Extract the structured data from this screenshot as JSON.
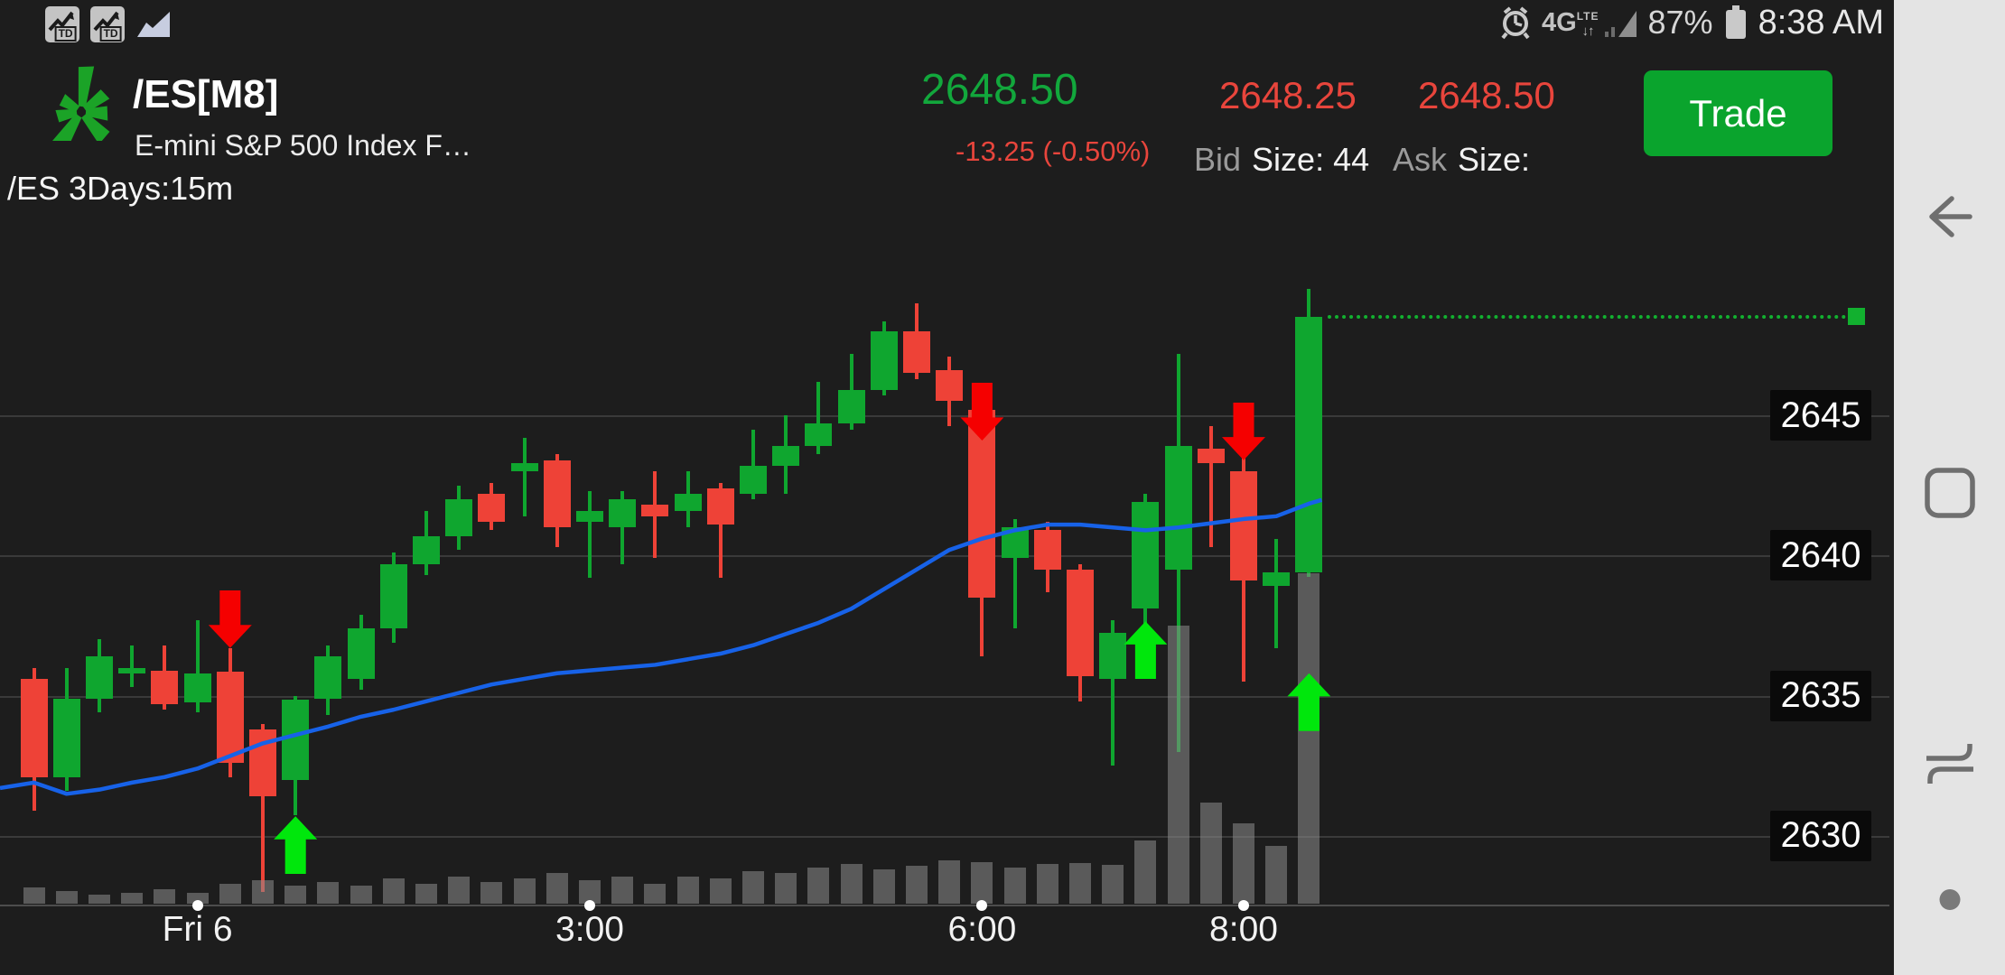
{
  "status_bar": {
    "left_icons": [
      "td-chart-notification-icon",
      "td-chart-notification-icon",
      "area-chart-notification-icon"
    ],
    "network": "4G",
    "network_sub": "LTE",
    "battery_pct": "87%",
    "time": "8:38 AM"
  },
  "header": {
    "symbol": "/ES[M8]",
    "description": "E-mini S&P 500 Index F…",
    "last": "2648.50",
    "change": "-13.25 (-0.50%)",
    "bid": "2648.25",
    "bid_label": "Bid",
    "bid_size_label": "Size:",
    "bid_size": "44",
    "ask": "2648.50",
    "ask_label": "Ask",
    "ask_size_label": "Size:",
    "ask_size": "",
    "trade_label": "Trade"
  },
  "chart_label": "/ES 3Days:15m",
  "colors": {
    "background": "#1d1d1d",
    "candle_up": "#0fa62f",
    "candle_down": "#ee4237",
    "arrow_up": "#00e70c",
    "arrow_down": "#f50000",
    "sma": "#1762e8",
    "price_up_text": "#12a73c",
    "price_down_text": "#e8453c",
    "trade_button": "#0aa42d",
    "last_price_line": "#12b02f",
    "volume": "#8c8c8c",
    "navbar_bg": "#e4e4e4",
    "navbar_icon": "#6f6f6f"
  },
  "chart_data": {
    "type": "candlestick",
    "symbol": "/ES",
    "timeframe": "3Days:15m",
    "ylabel": "price",
    "y_ticks": [
      2645,
      2640,
      2635,
      2630
    ],
    "ylim": [
      2627,
      2652
    ],
    "x_ticks": [
      {
        "label": "Fri 6",
        "candle": 5
      },
      {
        "label": "3:00",
        "candle": 17
      },
      {
        "label": "6:00",
        "candle": 29
      },
      {
        "label": "8:00",
        "candle": 37
      }
    ],
    "last_price": 2648.5,
    "legend_position": "none",
    "grid": true,
    "candles": [
      {
        "t": "22:45",
        "o": 2635.6,
        "h": 2636.0,
        "l": 2630.9,
        "c": 2632.1,
        "v": 18
      },
      {
        "t": "23:00",
        "o": 2632.1,
        "h": 2636.0,
        "l": 2631.6,
        "c": 2634.9,
        "v": 14
      },
      {
        "t": "23:15",
        "o": 2634.9,
        "h": 2637.0,
        "l": 2634.4,
        "c": 2636.4,
        "v": 10
      },
      {
        "t": "23:30",
        "o": 2635.8,
        "h": 2636.8,
        "l": 2635.3,
        "c": 2636.0,
        "v": 12
      },
      {
        "t": "23:45",
        "o": 2635.9,
        "h": 2636.8,
        "l": 2634.5,
        "c": 2634.7,
        "v": 16
      },
      {
        "t": "0:00",
        "o": 2634.75,
        "h": 2637.7,
        "l": 2634.4,
        "c": 2635.8,
        "v": 12
      },
      {
        "t": "0:15",
        "o": 2635.85,
        "h": 2636.7,
        "l": 2632.1,
        "c": 2632.6,
        "v": 22
      },
      {
        "t": "0:30",
        "o": 2633.8,
        "h": 2634.0,
        "l": 2628.0,
        "c": 2631.4,
        "v": 26
      },
      {
        "t": "0:45",
        "o": 2632.0,
        "h": 2635.0,
        "l": 2630.75,
        "c": 2634.85,
        "v": 20
      },
      {
        "t": "1:00",
        "o": 2634.9,
        "h": 2636.8,
        "l": 2634.3,
        "c": 2636.4,
        "v": 24
      },
      {
        "t": "1:15",
        "o": 2635.6,
        "h": 2637.9,
        "l": 2635.2,
        "c": 2637.4,
        "v": 20
      },
      {
        "t": "1:30",
        "o": 2637.4,
        "h": 2640.1,
        "l": 2636.9,
        "c": 2639.7,
        "v": 28
      },
      {
        "t": "1:45",
        "o": 2639.7,
        "h": 2641.6,
        "l": 2639.3,
        "c": 2640.7,
        "v": 22
      },
      {
        "t": "2:00",
        "o": 2640.7,
        "h": 2642.5,
        "l": 2640.2,
        "c": 2642.0,
        "v": 30
      },
      {
        "t": "2:15",
        "o": 2642.2,
        "h": 2642.6,
        "l": 2640.9,
        "c": 2641.2,
        "v": 24
      },
      {
        "t": "2:30",
        "o": 2643.0,
        "h": 2644.2,
        "l": 2641.4,
        "c": 2643.3,
        "v": 28
      },
      {
        "t": "2:45",
        "o": 2643.4,
        "h": 2643.6,
        "l": 2640.3,
        "c": 2641.0,
        "v": 34
      },
      {
        "t": "3:00",
        "o": 2641.2,
        "h": 2642.3,
        "l": 2639.2,
        "c": 2641.6,
        "v": 26
      },
      {
        "t": "3:15",
        "o": 2641.0,
        "h": 2642.3,
        "l": 2639.7,
        "c": 2642.0,
        "v": 30
      },
      {
        "t": "3:30",
        "o": 2641.8,
        "h": 2643.0,
        "l": 2639.9,
        "c": 2641.4,
        "v": 22
      },
      {
        "t": "3:45",
        "o": 2641.6,
        "h": 2643.0,
        "l": 2641.0,
        "c": 2642.2,
        "v": 30
      },
      {
        "t": "4:00",
        "o": 2642.4,
        "h": 2642.6,
        "l": 2639.2,
        "c": 2641.1,
        "v": 28
      },
      {
        "t": "4:15",
        "o": 2642.2,
        "h": 2644.5,
        "l": 2642.0,
        "c": 2643.2,
        "v": 36
      },
      {
        "t": "4:30",
        "o": 2643.2,
        "h": 2645.0,
        "l": 2642.2,
        "c": 2643.9,
        "v": 34
      },
      {
        "t": "4:45",
        "o": 2643.9,
        "h": 2646.2,
        "l": 2643.6,
        "c": 2644.7,
        "v": 40
      },
      {
        "t": "5:00",
        "o": 2644.7,
        "h": 2647.2,
        "l": 2644.5,
        "c": 2645.9,
        "v": 44
      },
      {
        "t": "5:15",
        "o": 2645.9,
        "h": 2648.35,
        "l": 2645.7,
        "c": 2648.0,
        "v": 38
      },
      {
        "t": "5:30",
        "o": 2648.0,
        "h": 2649.0,
        "l": 2646.3,
        "c": 2646.5,
        "v": 42
      },
      {
        "t": "5:45",
        "o": 2646.6,
        "h": 2647.1,
        "l": 2644.6,
        "c": 2645.5,
        "v": 48
      },
      {
        "t": "6:00",
        "o": 2645.2,
        "h": 2645.6,
        "l": 2636.4,
        "c": 2638.5,
        "v": 46
      },
      {
        "t": "6:15",
        "o": 2639.9,
        "h": 2641.3,
        "l": 2637.4,
        "c": 2641.0,
        "v": 40
      },
      {
        "t": "6:30",
        "o": 2640.9,
        "h": 2641.2,
        "l": 2638.7,
        "c": 2639.5,
        "v": 44
      },
      {
        "t": "6:45",
        "o": 2639.5,
        "h": 2639.7,
        "l": 2634.8,
        "c": 2635.7,
        "v": 45
      },
      {
        "t": "7:00",
        "o": 2635.6,
        "h": 2637.7,
        "l": 2632.5,
        "c": 2637.25,
        "v": 43
      },
      {
        "t": "7:15",
        "o": 2638.1,
        "h": 2642.2,
        "l": 2636.6,
        "c": 2641.9,
        "v": 70
      },
      {
        "t": "7:30",
        "o": 2639.5,
        "h": 2647.2,
        "l": 2633.0,
        "c": 2643.9,
        "v": 308
      },
      {
        "t": "7:45",
        "o": 2643.8,
        "h": 2644.6,
        "l": 2640.3,
        "c": 2643.3,
        "v": 112
      },
      {
        "t": "8:00",
        "o": 2643.0,
        "h": 2643.5,
        "l": 2635.5,
        "c": 2639.1,
        "v": 89
      },
      {
        "t": "8:15",
        "o": 2638.9,
        "h": 2640.6,
        "l": 2636.7,
        "c": 2639.4,
        "v": 64
      },
      {
        "t": "8:30",
        "o": 2639.4,
        "h": 2649.5,
        "l": 2639.25,
        "c": 2648.5,
        "v": 366
      }
    ],
    "sma": [
      2631.9,
      2631.5,
      2631.65,
      2631.9,
      2632.1,
      2632.4,
      2632.85,
      2633.3,
      2633.6,
      2633.9,
      2634.25,
      2634.5,
      2634.8,
      2635.1,
      2635.4,
      2635.6,
      2635.8,
      2635.9,
      2636.0,
      2636.1,
      2636.3,
      2636.5,
      2636.8,
      2637.2,
      2637.6,
      2638.1,
      2638.8,
      2639.5,
      2640.2,
      2640.6,
      2640.9,
      2641.1,
      2641.1,
      2641.0,
      2640.9,
      2641.0,
      2641.15,
      2641.3,
      2641.4,
      2641.85
    ],
    "signals": [
      {
        "candle": 6,
        "dir": "down",
        "price": 2636.7
      },
      {
        "candle": 8,
        "dir": "up",
        "price": 2630.7
      },
      {
        "candle": 29,
        "dir": "down",
        "price": 2644.1
      },
      {
        "candle": 34,
        "dir": "up",
        "price": 2637.65
      },
      {
        "candle": 37,
        "dir": "down",
        "price": 2643.4
      },
      {
        "candle": 39,
        "dir": "up",
        "price": 2635.8
      }
    ]
  },
  "navbar": {
    "items": [
      "back",
      "home",
      "recent-apps",
      "hide-dot"
    ]
  }
}
